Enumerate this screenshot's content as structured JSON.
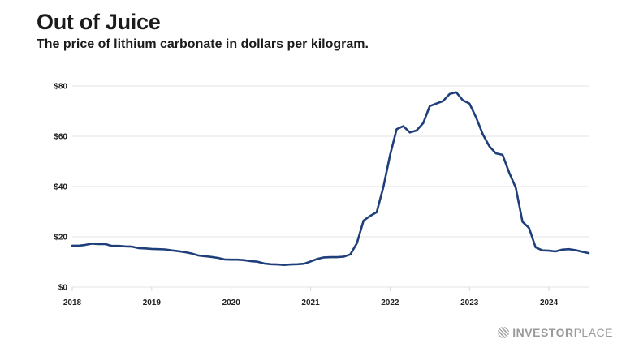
{
  "header": {
    "title": "Out of Juice",
    "subtitle": "The price of lithium carbonate in dollars per kilogram."
  },
  "brand": {
    "logo_bold": "INVESTOR",
    "logo_light": "PLACE",
    "icon": "globe-icon"
  },
  "chart_data": {
    "type": "line",
    "title": "Out of Juice",
    "subtitle": "The price of lithium carbonate in dollars per kilogram.",
    "xlabel": "",
    "ylabel": "",
    "ylim": [
      0,
      80
    ],
    "xlim": [
      2018.0,
      2024.5
    ],
    "grid": true,
    "line_color": "#1f3f7a",
    "yticks": [
      0,
      20,
      40,
      60,
      80
    ],
    "ytick_labels": [
      "$0",
      "$20",
      "$40",
      "$60",
      "$80"
    ],
    "xticks": [
      2018,
      2019,
      2020,
      2021,
      2022,
      2023,
      2024
    ],
    "xtick_labels": [
      "2018",
      "2019",
      "2020",
      "2021",
      "2022",
      "2023",
      "2024"
    ],
    "series": [
      {
        "name": "Lithium carbonate price ($/kg)",
        "x": [
          2018.0,
          2018.083,
          2018.167,
          2018.25,
          2018.333,
          2018.417,
          2018.5,
          2018.583,
          2018.667,
          2018.75,
          2018.833,
          2018.917,
          2019.0,
          2019.083,
          2019.167,
          2019.25,
          2019.333,
          2019.417,
          2019.5,
          2019.583,
          2019.667,
          2019.75,
          2019.833,
          2019.917,
          2020.0,
          2020.083,
          2020.167,
          2020.25,
          2020.333,
          2020.417,
          2020.5,
          2020.583,
          2020.667,
          2020.75,
          2020.833,
          2020.917,
          2021.0,
          2021.083,
          2021.167,
          2021.25,
          2021.333,
          2021.417,
          2021.5,
          2021.583,
          2021.667,
          2021.75,
          2021.833,
          2021.917,
          2022.0,
          2022.083,
          2022.167,
          2022.25,
          2022.333,
          2022.417,
          2022.5,
          2022.583,
          2022.667,
          2022.75,
          2022.833,
          2022.917,
          2023.0,
          2023.083,
          2023.167,
          2023.25,
          2023.333,
          2023.417,
          2023.5,
          2023.583,
          2023.667,
          2023.75,
          2023.833,
          2023.917,
          2024.0,
          2024.083,
          2024.167,
          2024.25,
          2024.333,
          2024.417,
          2024.5
        ],
        "y": [
          16.5,
          16.5,
          16.8,
          17.3,
          17.1,
          17.1,
          16.4,
          16.4,
          16.2,
          16.1,
          15.5,
          15.4,
          15.2,
          15.1,
          15.0,
          14.6,
          14.3,
          13.9,
          13.4,
          12.6,
          12.3,
          12.0,
          11.6,
          11.0,
          10.9,
          10.9,
          10.7,
          10.3,
          10.1,
          9.4,
          9.1,
          9.0,
          8.8,
          9.0,
          9.1,
          9.3,
          10.2,
          11.2,
          11.8,
          11.9,
          11.9,
          12.1,
          13.0,
          17.5,
          26.5,
          28.3,
          29.8,
          40.0,
          52.5,
          62.8,
          64.0,
          61.5,
          62.3,
          65.2,
          72.0,
          73.0,
          74.0,
          76.8,
          77.5,
          74.3,
          73.0,
          67.5,
          60.8,
          56.0,
          53.2,
          52.6,
          45.5,
          39.5,
          26.0,
          23.5,
          15.8,
          14.6,
          14.5,
          14.2,
          14.9,
          15.1,
          14.7,
          14.1,
          13.5
        ]
      }
    ]
  }
}
